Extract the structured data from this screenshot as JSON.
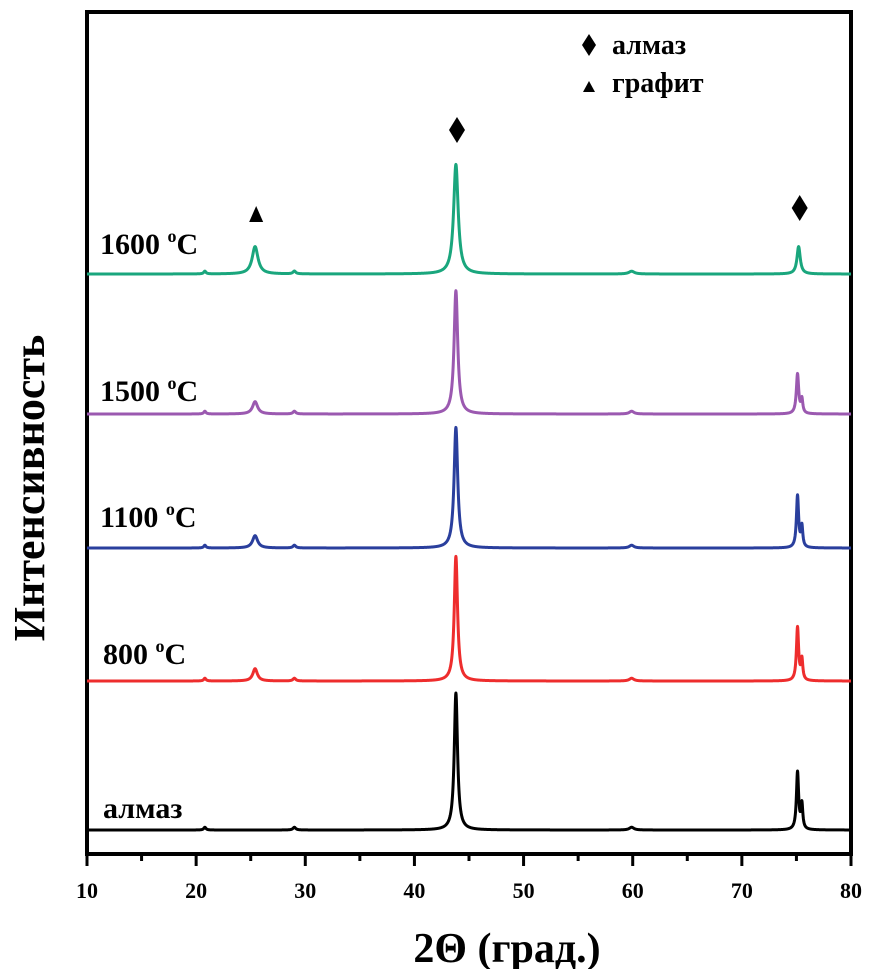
{
  "chart_data": {
    "type": "line",
    "xlabel": "2Θ (град.)",
    "ylabel": "Интенсивность",
    "xlim": [
      10,
      80
    ],
    "xticks": [
      10,
      20,
      30,
      40,
      50,
      60,
      70,
      80
    ],
    "yticks_shown": false,
    "legend": {
      "placement": "top-right",
      "entries": [
        {
          "marker": "diamond",
          "label": "алмаз"
        },
        {
          "marker": "triangle",
          "label": "графит"
        }
      ]
    },
    "annotations": [
      {
        "marker": "triangle",
        "x": 25.5,
        "series": "1600 °C"
      },
      {
        "marker": "diamond",
        "x": 43.9,
        "series": "1600 °C"
      },
      {
        "marker": "diamond",
        "x": 75.3,
        "series": "1600 °C"
      }
    ],
    "series": [
      {
        "name": "алмаз",
        "label_text": "алмаз",
        "unit_sup": "",
        "color": "#000000",
        "offset": 0,
        "peaks": [
          {
            "x": 20.8,
            "h": 0.02,
            "w": 0.12
          },
          {
            "x": 29.0,
            "h": 0.02,
            "w": 0.15
          },
          {
            "x": 43.8,
            "h": 1.0,
            "w": 0.18
          },
          {
            "x": 59.9,
            "h": 0.02,
            "w": 0.25
          },
          {
            "x": 75.1,
            "h": 0.42,
            "w": 0.12
          },
          {
            "x": 75.5,
            "h": 0.18,
            "w": 0.1
          }
        ]
      },
      {
        "name": "800 °C",
        "label_text": "800 ",
        "unit_sup": "o",
        "unit_tail": "C",
        "color": "#ee2d2d",
        "offset": 1,
        "peaks": [
          {
            "x": 20.8,
            "h": 0.02,
            "w": 0.12
          },
          {
            "x": 25.4,
            "h": 0.09,
            "w": 0.25
          },
          {
            "x": 29.0,
            "h": 0.02,
            "w": 0.15
          },
          {
            "x": 43.8,
            "h": 0.91,
            "w": 0.18
          },
          {
            "x": 59.9,
            "h": 0.02,
            "w": 0.25
          },
          {
            "x": 75.1,
            "h": 0.39,
            "w": 0.12
          },
          {
            "x": 75.5,
            "h": 0.15,
            "w": 0.1
          }
        ]
      },
      {
        "name": "1100 °C",
        "label_text": "1100 ",
        "unit_sup": "o",
        "unit_tail": "C",
        "color": "#2a3f9d",
        "offset": 2,
        "peaks": [
          {
            "x": 20.8,
            "h": 0.02,
            "w": 0.12
          },
          {
            "x": 25.4,
            "h": 0.09,
            "w": 0.28
          },
          {
            "x": 29.0,
            "h": 0.02,
            "w": 0.15
          },
          {
            "x": 43.8,
            "h": 0.88,
            "w": 0.2
          },
          {
            "x": 59.9,
            "h": 0.02,
            "w": 0.25
          },
          {
            "x": 75.1,
            "h": 0.38,
            "w": 0.12
          },
          {
            "x": 75.5,
            "h": 0.15,
            "w": 0.1
          }
        ]
      },
      {
        "name": "1500 °C",
        "label_text": "1500 ",
        "unit_sup": "o",
        "unit_tail": "C",
        "color": "#9b59b0",
        "offset": 3,
        "peaks": [
          {
            "x": 20.8,
            "h": 0.02,
            "w": 0.12
          },
          {
            "x": 25.4,
            "h": 0.09,
            "w": 0.28
          },
          {
            "x": 29.0,
            "h": 0.02,
            "w": 0.15
          },
          {
            "x": 43.8,
            "h": 0.9,
            "w": 0.2
          },
          {
            "x": 59.9,
            "h": 0.02,
            "w": 0.25
          },
          {
            "x": 75.1,
            "h": 0.29,
            "w": 0.13
          },
          {
            "x": 75.5,
            "h": 0.1,
            "w": 0.1
          }
        ]
      },
      {
        "name": "1600 °C",
        "label_text": "1600 ",
        "unit_sup": "o",
        "unit_tail": "C",
        "color": "#1aa67d",
        "offset": 4,
        "peaks": [
          {
            "x": 20.8,
            "h": 0.02,
            "w": 0.12
          },
          {
            "x": 25.4,
            "h": 0.2,
            "w": 0.32
          },
          {
            "x": 29.0,
            "h": 0.02,
            "w": 0.15
          },
          {
            "x": 43.8,
            "h": 0.8,
            "w": 0.25
          },
          {
            "x": 59.9,
            "h": 0.02,
            "w": 0.3
          },
          {
            "x": 75.2,
            "h": 0.2,
            "w": 0.18
          }
        ]
      }
    ]
  }
}
